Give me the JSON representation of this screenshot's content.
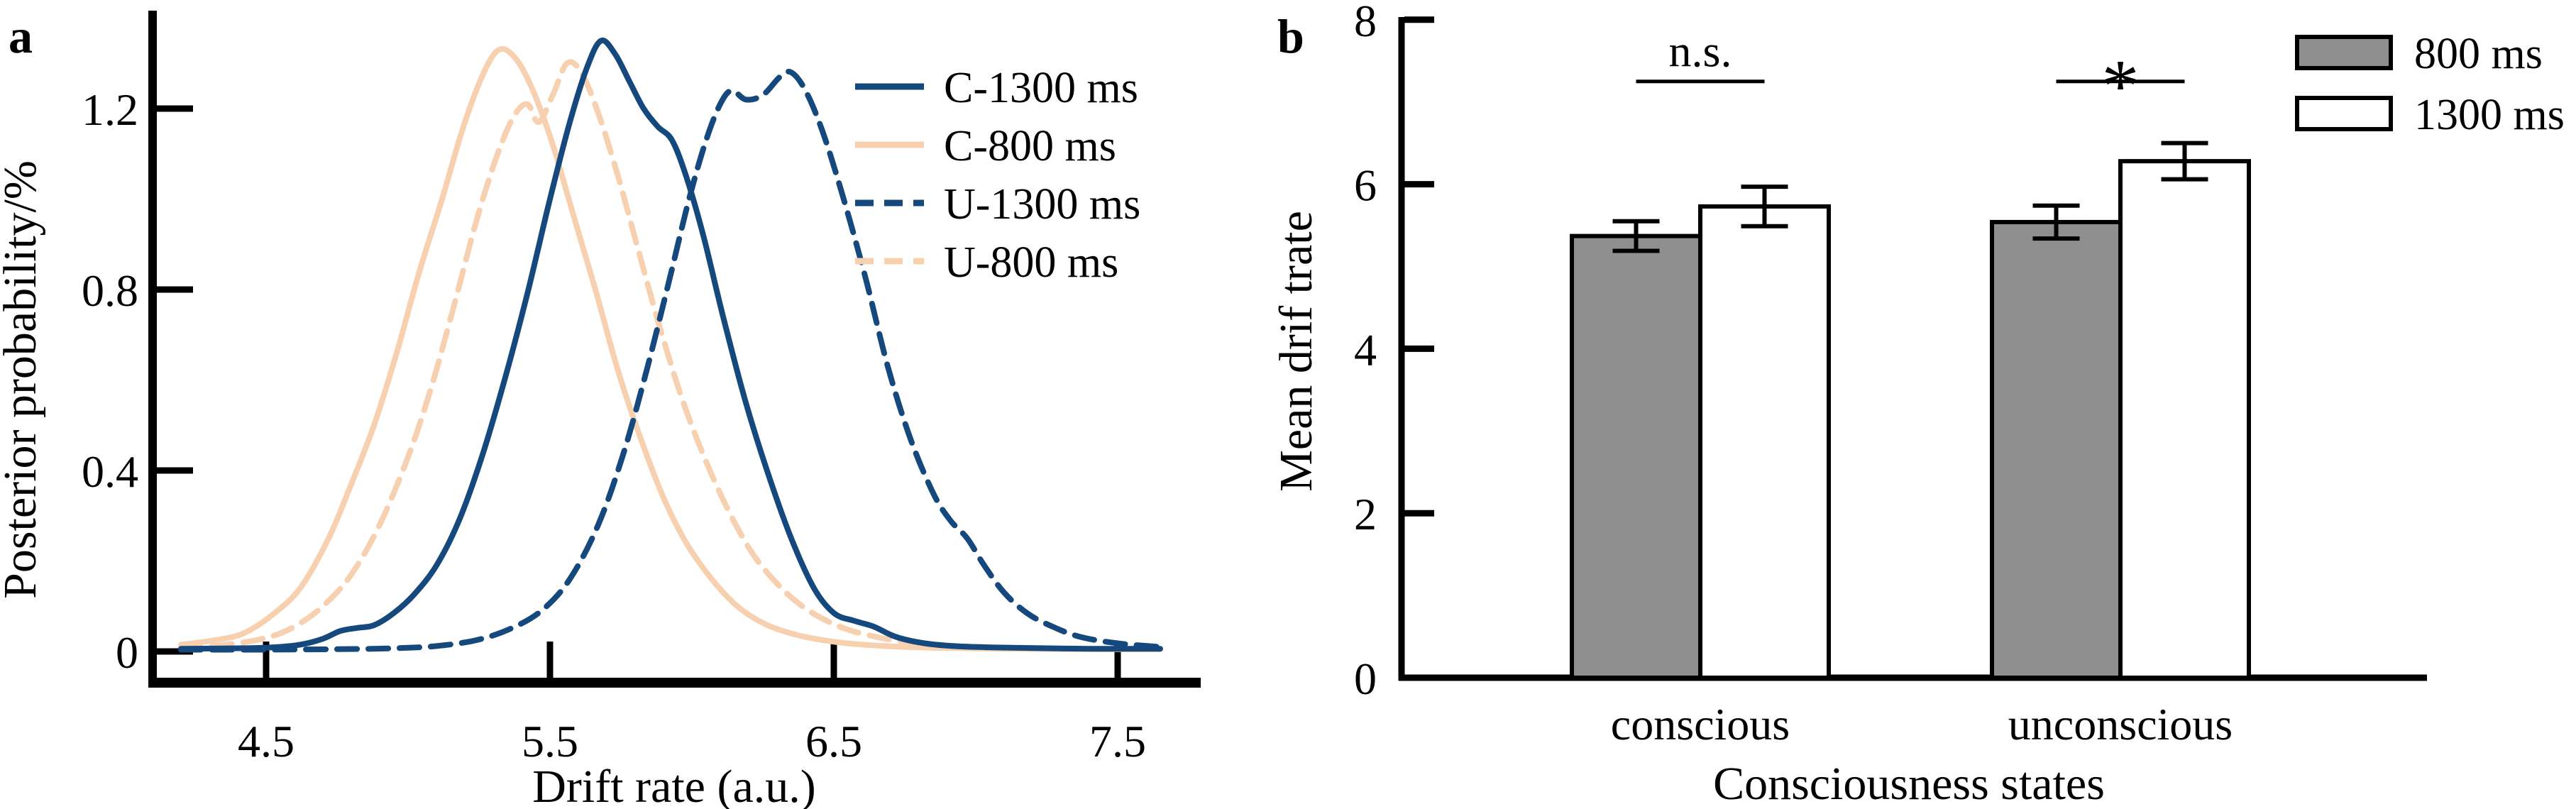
{
  "figure": {
    "panel_a_label": "a",
    "panel_b_label": "b"
  },
  "chart_data": [
    {
      "type": "line",
      "panel": "a",
      "subtype": "density-curves",
      "xlabel": "Drift rate (a.u.)",
      "ylabel": "Posterior probability/%",
      "xlim": [
        4.1,
        7.8
      ],
      "ylim": [
        0,
        1.41
      ],
      "xticks": [
        4.5,
        5.5,
        6.5,
        7.5
      ],
      "yticks": [
        0,
        0.4,
        0.8,
        1.2
      ],
      "grid": false,
      "legend_position": "upper-right-inside",
      "series": [
        {
          "name": "C-1300 ms",
          "color": "#15497E",
          "dash": "solid",
          "points": [
            [
              4.2,
              0.006
            ],
            [
              4.4,
              0.007
            ],
            [
              4.52,
              0.009
            ],
            [
              4.62,
              0.015
            ],
            [
              4.7,
              0.028
            ],
            [
              4.76,
              0.045
            ],
            [
              4.82,
              0.052
            ],
            [
              4.88,
              0.058
            ],
            [
              4.95,
              0.085
            ],
            [
              5.02,
              0.125
            ],
            [
              5.1,
              0.19
            ],
            [
              5.18,
              0.29
            ],
            [
              5.26,
              0.43
            ],
            [
              5.34,
              0.6
            ],
            [
              5.42,
              0.79
            ],
            [
              5.5,
              1.0
            ],
            [
              5.57,
              1.17
            ],
            [
              5.63,
              1.29
            ],
            [
              5.68,
              1.35
            ],
            [
              5.73,
              1.32
            ],
            [
              5.78,
              1.26
            ],
            [
              5.83,
              1.2
            ],
            [
              5.88,
              1.16
            ],
            [
              5.93,
              1.13
            ],
            [
              5.98,
              1.05
            ],
            [
              6.04,
              0.92
            ],
            [
              6.11,
              0.74
            ],
            [
              6.19,
              0.55
            ],
            [
              6.27,
              0.39
            ],
            [
              6.35,
              0.25
            ],
            [
              6.43,
              0.14
            ],
            [
              6.5,
              0.085
            ],
            [
              6.57,
              0.068
            ],
            [
              6.64,
              0.055
            ],
            [
              6.72,
              0.032
            ],
            [
              6.82,
              0.018
            ],
            [
              6.95,
              0.011
            ],
            [
              7.15,
              0.008
            ],
            [
              7.4,
              0.006
            ],
            [
              7.65,
              0.006
            ]
          ]
        },
        {
          "name": "C-800 ms",
          "color": "#F7D0B0",
          "dash": "solid",
          "points": [
            [
              4.2,
              0.015
            ],
            [
              4.32,
              0.025
            ],
            [
              4.42,
              0.04
            ],
            [
              4.52,
              0.08
            ],
            [
              4.62,
              0.14
            ],
            [
              4.72,
              0.25
            ],
            [
              4.8,
              0.37
            ],
            [
              4.88,
              0.5
            ],
            [
              4.96,
              0.66
            ],
            [
              5.04,
              0.84
            ],
            [
              5.12,
              1.0
            ],
            [
              5.19,
              1.15
            ],
            [
              5.26,
              1.27
            ],
            [
              5.32,
              1.33
            ],
            [
              5.38,
              1.31
            ],
            [
              5.44,
              1.24
            ],
            [
              5.51,
              1.12
            ],
            [
              5.58,
              0.97
            ],
            [
              5.66,
              0.8
            ],
            [
              5.74,
              0.62
            ],
            [
              5.82,
              0.47
            ],
            [
              5.9,
              0.34
            ],
            [
              5.98,
              0.24
            ],
            [
              6.07,
              0.16
            ],
            [
              6.16,
              0.1
            ],
            [
              6.26,
              0.06
            ],
            [
              6.38,
              0.035
            ],
            [
              6.52,
              0.02
            ],
            [
              6.68,
              0.012
            ],
            [
              6.85,
              0.008
            ],
            [
              7.1,
              0.006
            ],
            [
              7.4,
              0.005
            ],
            [
              7.65,
              0.005
            ]
          ]
        },
        {
          "name": "U-1300 ms",
          "color": "#15497E",
          "dash": "dashed",
          "points": [
            [
              4.2,
              0.004
            ],
            [
              4.5,
              0.004
            ],
            [
              4.75,
              0.005
            ],
            [
              4.95,
              0.007
            ],
            [
              5.1,
              0.012
            ],
            [
              5.24,
              0.025
            ],
            [
              5.36,
              0.05
            ],
            [
              5.47,
              0.09
            ],
            [
              5.57,
              0.16
            ],
            [
              5.67,
              0.28
            ],
            [
              5.76,
              0.44
            ],
            [
              5.84,
              0.62
            ],
            [
              5.92,
              0.82
            ],
            [
              5.99,
              1.0
            ],
            [
              6.05,
              1.13
            ],
            [
              6.1,
              1.21
            ],
            [
              6.14,
              1.24
            ],
            [
              6.19,
              1.22
            ],
            [
              6.25,
              1.23
            ],
            [
              6.31,
              1.27
            ],
            [
              6.35,
              1.28
            ],
            [
              6.4,
              1.24
            ],
            [
              6.46,
              1.15
            ],
            [
              6.53,
              1.01
            ],
            [
              6.61,
              0.83
            ],
            [
              6.69,
              0.63
            ],
            [
              6.77,
              0.47
            ],
            [
              6.85,
              0.35
            ],
            [
              6.91,
              0.29
            ],
            [
              6.97,
              0.25
            ],
            [
              7.03,
              0.19
            ],
            [
              7.1,
              0.13
            ],
            [
              7.18,
              0.085
            ],
            [
              7.27,
              0.055
            ],
            [
              7.37,
              0.032
            ],
            [
              7.5,
              0.018
            ],
            [
              7.65,
              0.01
            ]
          ]
        },
        {
          "name": "U-800 ms",
          "color": "#F7D0B0",
          "dash": "dashed",
          "points": [
            [
              4.2,
              0.008
            ],
            [
              4.36,
              0.015
            ],
            [
              4.5,
              0.03
            ],
            [
              4.6,
              0.055
            ],
            [
              4.7,
              0.1
            ],
            [
              4.8,
              0.17
            ],
            [
              4.9,
              0.28
            ],
            [
              5.0,
              0.43
            ],
            [
              5.08,
              0.58
            ],
            [
              5.16,
              0.76
            ],
            [
              5.24,
              0.95
            ],
            [
              5.31,
              1.09
            ],
            [
              5.37,
              1.18
            ],
            [
              5.42,
              1.21
            ],
            [
              5.46,
              1.17
            ],
            [
              5.51,
              1.23
            ],
            [
              5.56,
              1.3
            ],
            [
              5.61,
              1.28
            ],
            [
              5.67,
              1.19
            ],
            [
              5.74,
              1.05
            ],
            [
              5.81,
              0.89
            ],
            [
              5.89,
              0.71
            ],
            [
              5.97,
              0.55
            ],
            [
              6.05,
              0.42
            ],
            [
              6.13,
              0.31
            ],
            [
              6.21,
              0.22
            ],
            [
              6.3,
              0.15
            ],
            [
              6.4,
              0.095
            ],
            [
              6.52,
              0.055
            ],
            [
              6.65,
              0.032
            ],
            [
              6.8,
              0.018
            ],
            [
              7.0,
              0.01
            ],
            [
              7.3,
              0.006
            ],
            [
              7.65,
              0.005
            ]
          ]
        }
      ]
    },
    {
      "type": "bar",
      "panel": "b",
      "xlabel": "Consciousness states",
      "ylabel": "Mean drif trate",
      "categories": [
        "conscious",
        "unconscious"
      ],
      "ylim": [
        0,
        8
      ],
      "yticks": [
        0,
        2,
        4,
        6,
        8
      ],
      "grid": false,
      "bar_outline_color": "#000000",
      "legend_position": "upper-right",
      "series": [
        {
          "name": "800 ms",
          "fill": "#8F8F8F",
          "values": [
            5.37,
            5.54
          ],
          "errors": [
            0.18,
            0.2
          ]
        },
        {
          "name": "1300 ms",
          "fill": "#FFFFFF",
          "values": [
            5.73,
            6.28
          ],
          "errors": [
            0.24,
            0.22
          ]
        }
      ],
      "significance": [
        {
          "category": "conscious",
          "label": "n.s."
        },
        {
          "category": "unconscious",
          "label": "*"
        }
      ],
      "sig_line_value": 7.25
    }
  ]
}
